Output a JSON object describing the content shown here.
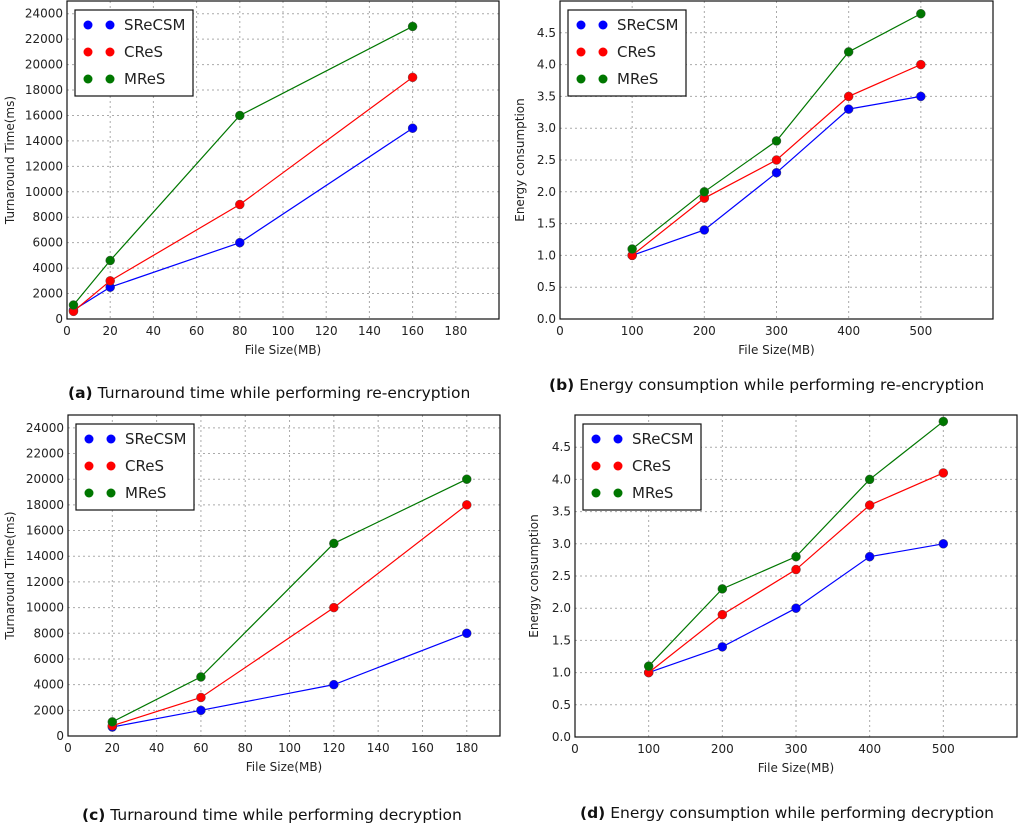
{
  "colors": {
    "SReCSM": "#0000ff",
    "CReS": "#ff0000",
    "MReS": "#007700"
  },
  "chart_data": [
    {
      "type": "line",
      "panel": "(a)",
      "caption": "Turnaround time while performing re-encryption",
      "xlabel": "File Size(MB)",
      "ylabel": "Turnaround Time(ms)",
      "xlim": [
        0,
        200
      ],
      "ylim": [
        0,
        25000
      ],
      "xticks": [
        0,
        20,
        40,
        60,
        80,
        100,
        120,
        140,
        160,
        180
      ],
      "yticks": [
        0,
        2000,
        4000,
        6000,
        8000,
        10000,
        12000,
        14000,
        16000,
        18000,
        20000,
        22000,
        24000
      ],
      "grid": true,
      "legend": "top-left",
      "x": [
        3,
        20,
        80,
        160
      ],
      "series": [
        {
          "name": "SReCSM",
          "values": [
            700,
            2500,
            6000,
            15000
          ]
        },
        {
          "name": "CReS",
          "values": [
            600,
            3000,
            9000,
            19000
          ]
        },
        {
          "name": "MReS",
          "values": [
            1100,
            4600,
            16000,
            23000
          ]
        }
      ]
    },
    {
      "type": "line",
      "panel": "(b)",
      "caption": "Energy consumption while performing re-encryption",
      "xlabel": "File Size(MB)",
      "ylabel": "Energy consumption",
      "xlim": [
        0,
        600
      ],
      "ylim": [
        0,
        5
      ],
      "xticks": [
        0,
        100,
        200,
        300,
        400,
        500
      ],
      "yticks": [
        "0.0",
        "0.5",
        "1.0",
        "1.5",
        "2.0",
        "2.5",
        "3.0",
        "3.5",
        "4.0",
        "4.5"
      ],
      "grid": true,
      "legend": "top-left",
      "x": [
        100,
        200,
        300,
        400,
        500
      ],
      "series": [
        {
          "name": "SReCSM",
          "values": [
            1.0,
            1.4,
            2.3,
            3.3,
            3.5
          ]
        },
        {
          "name": "CReS",
          "values": [
            1.0,
            1.9,
            2.5,
            3.5,
            4.0
          ]
        },
        {
          "name": "MReS",
          "values": [
            1.1,
            2.0,
            2.8,
            4.2,
            4.8
          ]
        }
      ]
    },
    {
      "type": "line",
      "panel": "(c)",
      "caption": "Turnaround time while performing decryption",
      "xlabel": "File Size(MB)",
      "ylabel": "Turnaround Time(ms)",
      "xlim": [
        0,
        195
      ],
      "ylim": [
        0,
        25000
      ],
      "xticks": [
        0,
        20,
        40,
        60,
        80,
        100,
        120,
        140,
        160,
        180
      ],
      "yticks": [
        0,
        2000,
        4000,
        6000,
        8000,
        10000,
        12000,
        14000,
        16000,
        18000,
        20000,
        22000,
        24000
      ],
      "grid": true,
      "legend": "top-left",
      "x": [
        20,
        60,
        120,
        180
      ],
      "series": [
        {
          "name": "SReCSM",
          "values": [
            700,
            2000,
            4000,
            8000
          ]
        },
        {
          "name": "CReS",
          "values": [
            800,
            3000,
            10000,
            18000
          ]
        },
        {
          "name": "MReS",
          "values": [
            1100,
            4600,
            15000,
            20000
          ]
        }
      ]
    },
    {
      "type": "line",
      "panel": "(d)",
      "caption": "Energy consumption while performing decryption",
      "xlabel": "File Size(MB)",
      "ylabel": "Energy consumption",
      "xlim": [
        0,
        600
      ],
      "ylim": [
        0,
        5
      ],
      "xticks": [
        0,
        100,
        200,
        300,
        400,
        500
      ],
      "yticks": [
        "0.0",
        "0.5",
        "1.0",
        "1.5",
        "2.0",
        "2.5",
        "3.0",
        "3.5",
        "4.0",
        "4.5"
      ],
      "grid": true,
      "legend": "top-left",
      "x": [
        100,
        200,
        300,
        400,
        500
      ],
      "series": [
        {
          "name": "SReCSM",
          "values": [
            1.0,
            1.4,
            2.0,
            2.8,
            3.0
          ]
        },
        {
          "name": "CReS",
          "values": [
            1.0,
            1.9,
            2.6,
            3.6,
            4.1
          ]
        },
        {
          "name": "MReS",
          "values": [
            1.1,
            2.3,
            2.8,
            4.0,
            4.9
          ]
        }
      ]
    }
  ]
}
